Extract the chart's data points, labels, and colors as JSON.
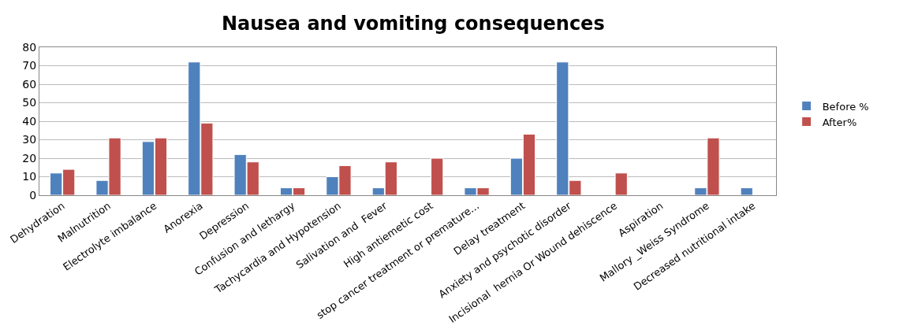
{
  "chart_data": {
    "type": "bar",
    "title": "Nausea and vomiting consequences",
    "categories": [
      "Dehydration",
      "Malnutrition",
      "Electrolyte imbalance",
      "Anorexia",
      "Depression",
      "Confusion and lethargy",
      "Tachycardia and Hypotension",
      "Salivation and  Fever",
      "High antiemetic cost",
      "stop cancer treatment or premature...",
      "Delay treatment",
      "Anxiety and psychotic disorder",
      "Incisional  hernia Or Wound dehiscence",
      "Aspiration",
      "Mallory _Weiss Syndrome",
      "Decreased nutritional intake"
    ],
    "series": [
      {
        "name": "Before %",
        "color": "#4f81bd",
        "values": [
          12,
          8,
          29,
          72,
          22,
          4,
          10,
          4,
          null,
          4,
          20,
          72,
          null,
          null,
          4,
          4
        ]
      },
      {
        "name": "After%",
        "color": "#c0504d",
        "values": [
          14,
          31,
          31,
          39,
          18,
          4,
          16,
          18,
          20,
          4,
          33,
          8,
          12,
          null,
          31,
          null
        ]
      }
    ],
    "ylim": [
      0,
      80
    ],
    "yticks": [
      0,
      10,
      20,
      30,
      40,
      50,
      60,
      70,
      80
    ],
    "grid": "y",
    "legend": "right"
  }
}
